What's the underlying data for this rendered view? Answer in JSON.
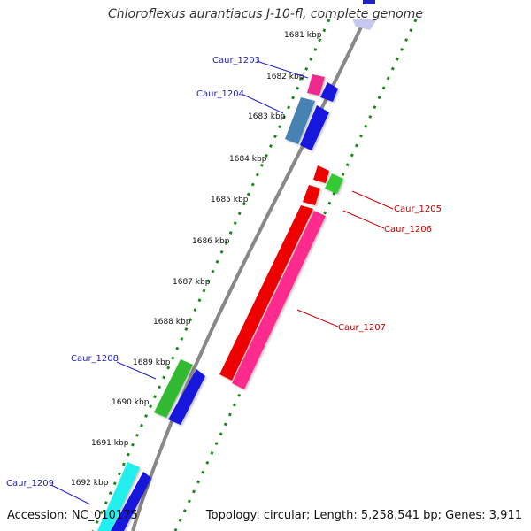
{
  "title": "Chloroflexus aurantiacus J-10-fl, complete genome",
  "accession": "Accession: NC_010175",
  "summary": "Topology: circular; Length: 5,258,541 bp; Genes: 3,911",
  "ticks": [
    "1681 kbp",
    "1682 kbp",
    "1683 kbp",
    "1684 kbp",
    "1685 kbp",
    "1686 kbp",
    "1687 kbp",
    "1688 kbp",
    "1689 kbp",
    "1690 kbp",
    "1691 kbp",
    "1692 kbp"
  ],
  "genes": [
    {
      "id": "Caur_1203",
      "color": "#2222bb"
    },
    {
      "id": "Caur_1204",
      "color": "#2222bb"
    },
    {
      "id": "Caur_1205",
      "color": "#cc0000"
    },
    {
      "id": "Caur_1206",
      "color": "#cc0000"
    },
    {
      "id": "Caur_1207",
      "color": "#cc0000"
    },
    {
      "id": "Caur_1208",
      "color": "#2222bb"
    },
    {
      "id": "Caur_1209",
      "color": "#2222bb"
    }
  ]
}
